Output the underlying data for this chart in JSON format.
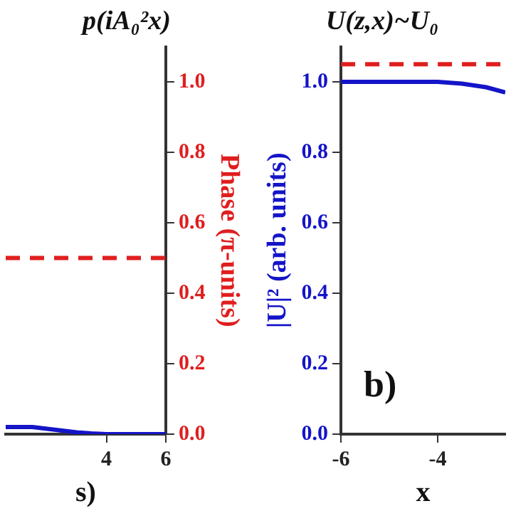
{
  "chart_data": [
    {
      "type": "line",
      "title": "p(iA₀²x)",
      "xlabel": "s)",
      "xlim": [
        0.6,
        6
      ],
      "xticks": [
        4,
        6
      ],
      "y2lim": [
        0,
        1.1
      ],
      "y2ticks": [
        {
          "value": 0,
          "label": "0.0"
        },
        0.2,
        0.4,
        0.6,
        0.8,
        {
          "value": 1,
          "label": "1.0"
        }
      ],
      "y2label": "Phase (π-units)",
      "grid": false,
      "legend": false,
      "tick_labels": "xy2",
      "series": [
        {
          "color": "#1414c8",
          "axis": "y2",
          "line_style": "solid",
          "x": [
            0.6,
            1,
            1.5,
            2,
            2.5,
            3,
            3.5,
            4,
            5,
            6
          ],
          "values": [
            0.02,
            0.02,
            0.02,
            0.015,
            0.01,
            0.005,
            0.002,
            0,
            0,
            0
          ]
        },
        {
          "color": "#e01e1e",
          "axis": "y2",
          "line_style": "dashed",
          "x": [
            0.6,
            6
          ],
          "values": [
            0.5,
            0.5
          ]
        }
      ]
    },
    {
      "type": "line",
      "title": "U(z,x)~U₀",
      "xlabel": "x",
      "xlim": [
        -6,
        -2.6
      ],
      "xticks": [
        -6,
        -4
      ],
      "ylim": [
        0,
        1.1
      ],
      "yticks": [
        {
          "value": 0,
          "label": "0.0"
        },
        0.2,
        0.4,
        0.6,
        0.8,
        {
          "value": 1,
          "label": "1.0"
        }
      ],
      "ylabel": "|U|² (arb. units)",
      "grid": false,
      "legend": false,
      "annotations": [
        "b)"
      ],
      "series": [
        {
          "color": "#1414c8",
          "line_style": "solid",
          "x": [
            -6,
            -5,
            -4.5,
            -4,
            -3.5,
            -3,
            -2.6
          ],
          "values": [
            1,
            1,
            1,
            1,
            0.995,
            0.985,
            0.97
          ]
        },
        {
          "color": "#e01e1e",
          "line_style": "dashed",
          "x": [
            -6,
            -2.6
          ],
          "values": [
            1.05,
            1.05
          ]
        }
      ]
    }
  ]
}
